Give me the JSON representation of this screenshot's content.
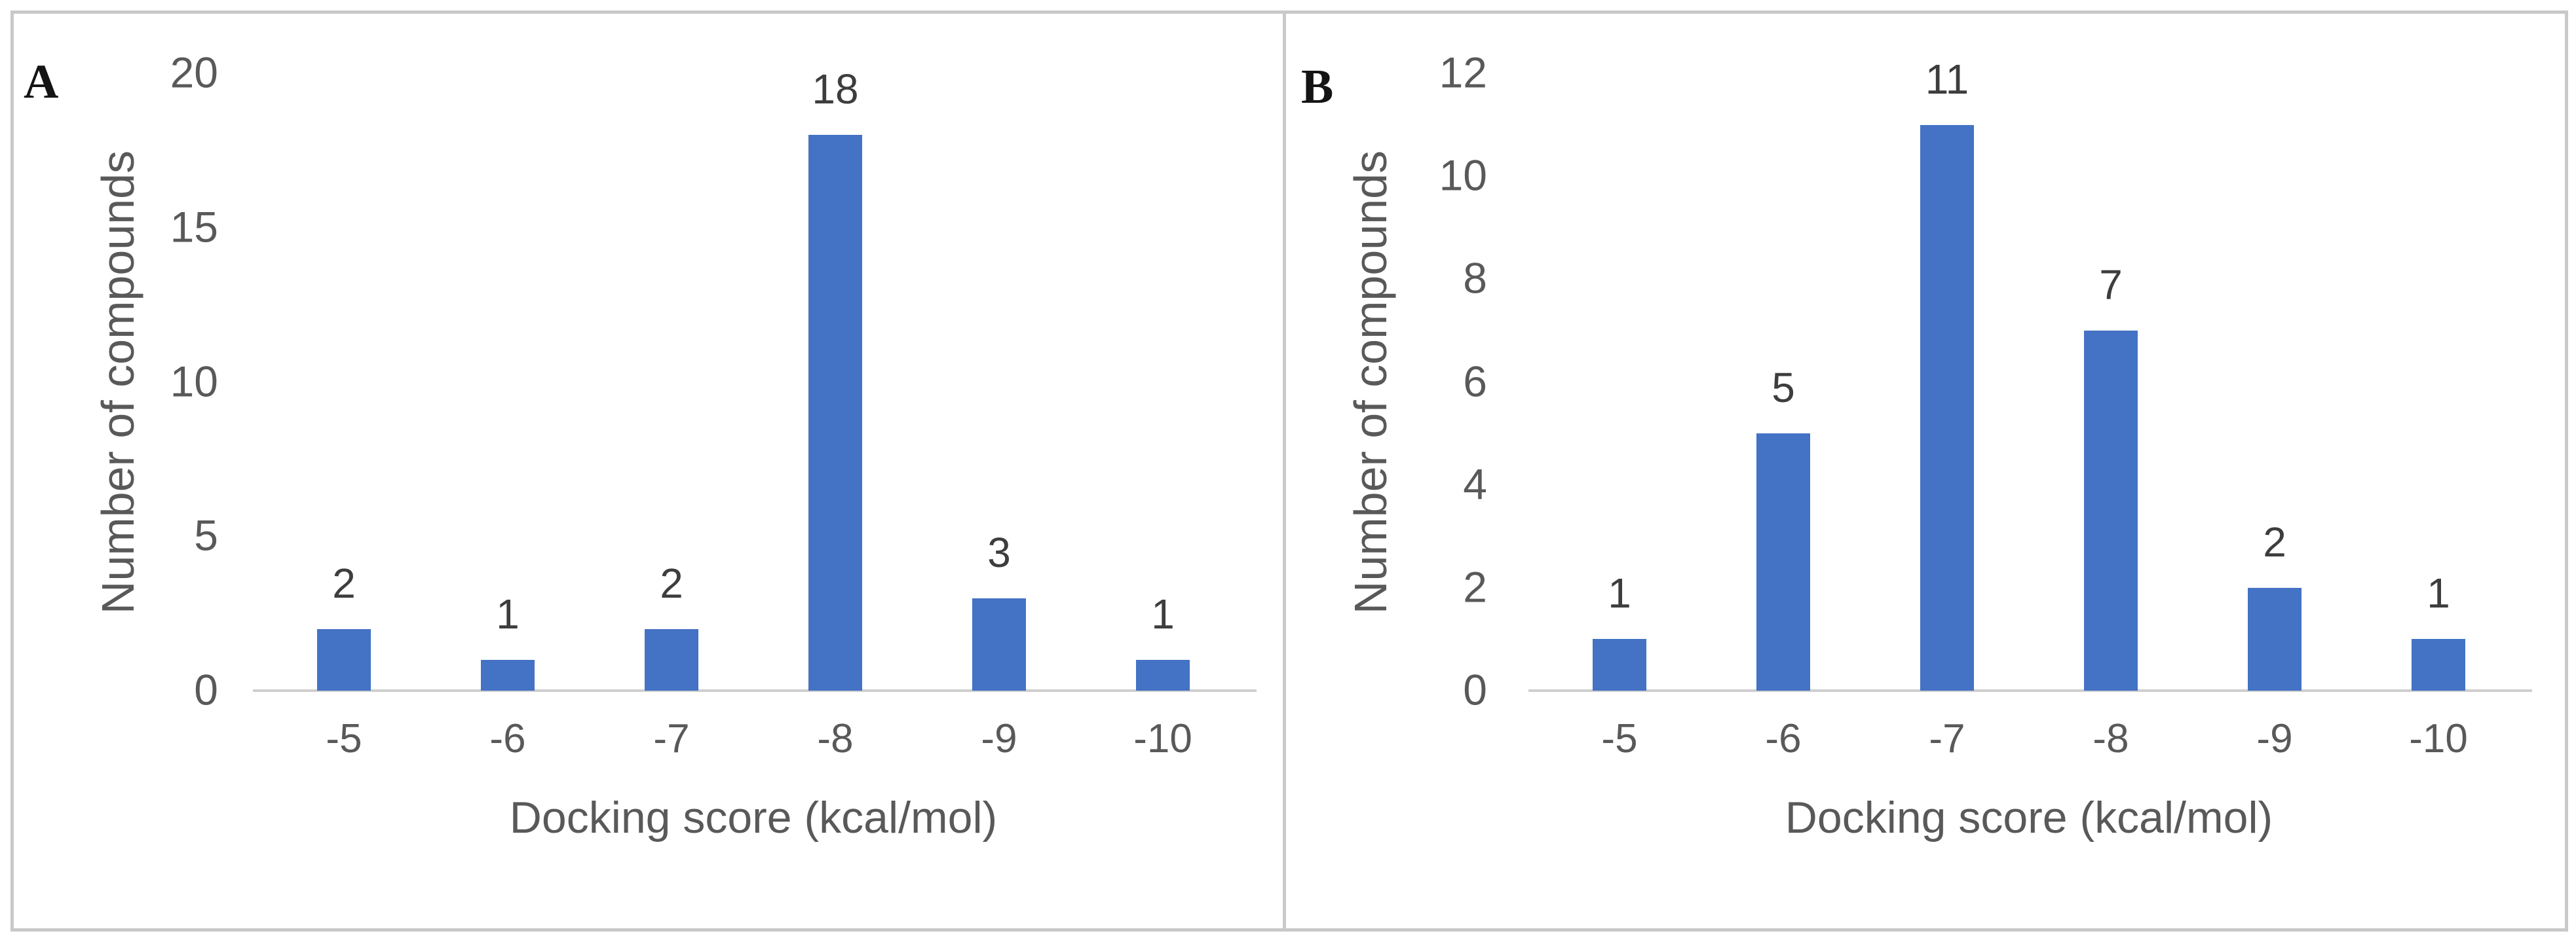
{
  "figure": {
    "background_color": "#ffffff",
    "frame_border_color": "#c9c9c9",
    "panel_divider_color": "#c9c9c9",
    "axis_line_color": "#cfcfcf",
    "axis_text_color": "#595959",
    "data_label_color": "#3d3d3d",
    "bar_color": "#4472c4"
  },
  "chart_data": [
    {
      "type": "bar",
      "panel_label": "A",
      "title": "",
      "categories": [
        "-5",
        "-6",
        "-7",
        "-8",
        "-9",
        "-10"
      ],
      "values": [
        2,
        1,
        2,
        18,
        3,
        1
      ],
      "xlabel": "Docking score (kcal/mol)",
      "ylabel": "Number of compounds",
      "ylim": [
        0,
        20
      ],
      "yticks": [
        0,
        5,
        10,
        15,
        20
      ],
      "grid": false,
      "legend_position": "none",
      "bar_color": "#4472c4",
      "data_labels": [
        "2",
        "1",
        "2",
        "18",
        "3",
        "1"
      ]
    },
    {
      "type": "bar",
      "panel_label": "B",
      "title": "",
      "categories": [
        "-5",
        "-6",
        "-7",
        "-8",
        "-9",
        "-10"
      ],
      "values": [
        1,
        5,
        11,
        7,
        2,
        1
      ],
      "xlabel": "Docking score (kcal/mol)",
      "ylabel": "Number of compounds",
      "ylim": [
        0,
        12
      ],
      "yticks": [
        0,
        2,
        4,
        6,
        8,
        10,
        12
      ],
      "grid": false,
      "legend_position": "none",
      "bar_color": "#4472c4",
      "data_labels": [
        "1",
        "5",
        "11",
        "7",
        "2",
        "1"
      ]
    }
  ]
}
